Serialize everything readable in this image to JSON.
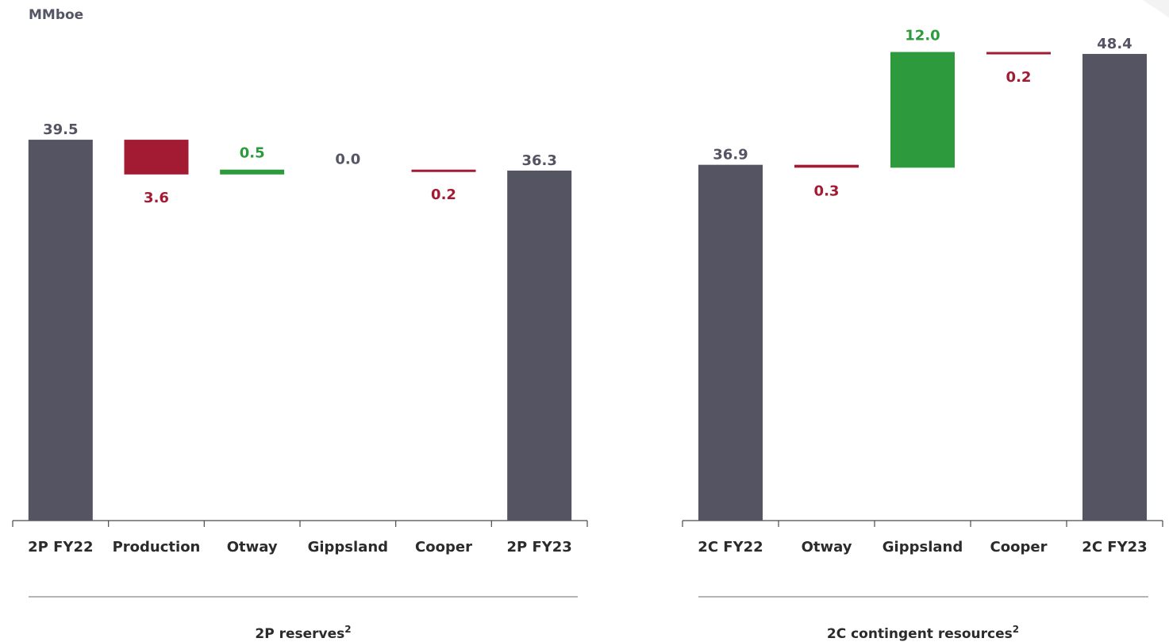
{
  "unit_label": "MMboe",
  "colors": {
    "total": "#555463",
    "decrease": "#a31b32",
    "increase": "#2c9a3d",
    "neutral": "#555665",
    "axis": "#4a4a4a"
  },
  "chart_data": [
    {
      "type": "bar",
      "subtype": "waterfall",
      "section_label": "2P reserves",
      "section_label_sup": "2",
      "ylabel": "MMboe",
      "categories": [
        "2P FY22",
        "Production",
        "Otway",
        "Gippsland",
        "Cooper",
        "2P FY23"
      ],
      "kinds": [
        "total",
        "decrease",
        "increase",
        "neutral",
        "decrease",
        "total"
      ],
      "values": [
        39.5,
        3.6,
        0.5,
        0.0,
        0.2,
        36.3
      ],
      "labels": [
        "39.5",
        "3.6",
        "0.5",
        "0.0",
        "0.2",
        "36.3"
      ]
    },
    {
      "type": "bar",
      "subtype": "waterfall",
      "section_label": "2C contingent resources",
      "section_label_sup": "2",
      "categories": [
        "2C FY22",
        "Otway",
        "Gippsland",
        "Cooper",
        "2C FY23"
      ],
      "kinds": [
        "total",
        "decrease",
        "increase",
        "decrease",
        "total"
      ],
      "values": [
        36.9,
        0.3,
        12.0,
        0.2,
        48.4
      ],
      "labels": [
        "36.9",
        "0.3",
        "12.0",
        "0.2",
        "48.4"
      ]
    }
  ]
}
